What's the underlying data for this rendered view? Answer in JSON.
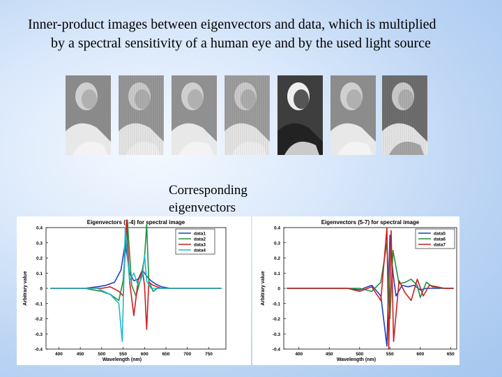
{
  "title": {
    "line1": "Inner-product images between eigenvectors and data, which is multiplied",
    "line2": "by a spectral sensitivity of a human eye and by the used light source"
  },
  "caption": {
    "line1": "Corresponding",
    "line2": "eigenvectors"
  },
  "thumbnails": [
    {
      "label": "",
      "tone": "#8a8a8a"
    },
    {
      "label": "",
      "tone": "#9a9a9a"
    },
    {
      "label": "",
      "tone": "#909090"
    },
    {
      "label": "",
      "tone": "#a0a0a0"
    },
    {
      "label": "",
      "tone": "#3e3e3e"
    },
    {
      "label": "",
      "tone": "#8c8c8c"
    },
    {
      "label": "",
      "tone": "#707070"
    }
  ],
  "chart_data": [
    {
      "type": "line",
      "title": "Eigenvectors (1-4) for spectral image",
      "xlabel": "Wavelength (nm)",
      "ylabel": "Arbitrary value",
      "xlim": [
        370,
        790
      ],
      "ylim": [
        -0.4,
        0.4
      ],
      "xticks": [
        400,
        450,
        500,
        550,
        600,
        650,
        700,
        750
      ],
      "yticks": [
        -0.4,
        -0.3,
        -0.2,
        -0.1,
        0,
        0.1,
        0.2,
        0.3,
        0.4
      ],
      "ytick_labels": [
        "-0.4",
        "-0.3",
        "-0.2",
        "-0.1",
        "0",
        "0.1",
        "0.2",
        "0.3",
        "0.4"
      ],
      "legend_position": "top-right",
      "series": [
        {
          "name": "data1",
          "color": "#1f3fbf",
          "x": [
            380,
            460,
            490,
            510,
            530,
            545,
            555,
            565,
            575,
            585,
            595,
            605,
            615,
            625,
            640,
            660,
            700,
            780
          ],
          "y": [
            0,
            0,
            0.01,
            0.02,
            0.04,
            0.12,
            0.3,
            0.1,
            0.05,
            0.06,
            0.12,
            0.08,
            0.05,
            0.03,
            0.01,
            0,
            0,
            0
          ]
        },
        {
          "name": "data2",
          "color": "#1f8f3f",
          "x": [
            380,
            460,
            500,
            520,
            540,
            550,
            560,
            570,
            580,
            590,
            600,
            605,
            610,
            620,
            630,
            650,
            700,
            780
          ],
          "y": [
            0,
            0,
            -0.02,
            -0.04,
            -0.08,
            0.05,
            0.45,
            0.02,
            -0.05,
            0.05,
            0.2,
            0.42,
            0.05,
            -0.02,
            0,
            0,
            0,
            0
          ]
        },
        {
          "name": "data3",
          "color": "#cc1f1f",
          "x": [
            380,
            460,
            500,
            520,
            540,
            550,
            558,
            565,
            575,
            585,
            595,
            600,
            605,
            610,
            620,
            640,
            700,
            780
          ],
          "y": [
            0,
            0,
            0,
            0.01,
            -0.02,
            -0.05,
            0.45,
            0.05,
            -0.18,
            0.05,
            0.12,
            0.02,
            -0.27,
            0.04,
            0.02,
            0,
            0,
            0
          ]
        },
        {
          "name": "data4",
          "color": "#1fb8c8",
          "x": [
            380,
            460,
            490,
            520,
            540,
            548,
            555,
            565,
            575,
            585,
            595,
            600,
            605,
            615,
            630,
            650,
            700,
            780
          ],
          "y": [
            0,
            0,
            0,
            -0.04,
            -0.1,
            -0.35,
            0.4,
            0.05,
            0.1,
            0.02,
            0.08,
            0.22,
            0.05,
            0,
            0,
            0,
            0,
            0
          ]
        }
      ]
    },
    {
      "type": "line",
      "title": "Eigenvectors (5-7) for spectral image",
      "xlabel": "Wavelength (nm)",
      "ylabel": "Arbitrary value",
      "xlim": [
        375,
        660
      ],
      "ylim": [
        -0.4,
        0.4
      ],
      "xticks": [
        400,
        450,
        500,
        550,
        600,
        650
      ],
      "yticks": [
        -0.4,
        -0.3,
        -0.2,
        -0.1,
        0,
        0.1,
        0.2,
        0.3,
        0.4
      ],
      "ytick_labels": [
        "-0.4",
        "-0.3",
        "-0.2",
        "-0.1",
        "0",
        "0.1",
        "0.2",
        "0.3",
        "0.4"
      ],
      "legend_position": "top-right",
      "series": [
        {
          "name": "data5",
          "color": "#1f3fbf",
          "x": [
            380,
            480,
            500,
            520,
            535,
            545,
            550,
            555,
            560,
            570,
            580,
            590,
            600,
            610,
            620,
            640,
            655
          ],
          "y": [
            0,
            0,
            -0.01,
            0.02,
            -0.05,
            -0.38,
            0.35,
            0.1,
            -0.05,
            0.02,
            0.01,
            0.02,
            -0.01,
            0,
            0,
            0,
            0
          ]
        },
        {
          "name": "data6",
          "color": "#1f8f3f",
          "x": [
            380,
            480,
            500,
            520,
            535,
            545,
            550,
            555,
            565,
            575,
            585,
            595,
            600,
            610,
            620,
            640,
            655
          ],
          "y": [
            0,
            0,
            0,
            -0.02,
            0.04,
            0.3,
            -0.2,
            0.25,
            0.03,
            0.04,
            0.06,
            0.02,
            -0.06,
            0.04,
            0.01,
            0,
            0
          ]
        },
        {
          "name": "data7",
          "color": "#cc1f1f",
          "x": [
            380,
            480,
            500,
            520,
            535,
            545,
            548,
            552,
            556,
            565,
            575,
            585,
            595,
            605,
            615,
            640,
            655
          ],
          "y": [
            0,
            0,
            -0.02,
            0.01,
            -0.08,
            0.4,
            -0.4,
            0.38,
            -0.35,
            0.05,
            -0.03,
            -0.08,
            0.06,
            -0.05,
            0.02,
            0,
            0
          ]
        }
      ]
    }
  ]
}
